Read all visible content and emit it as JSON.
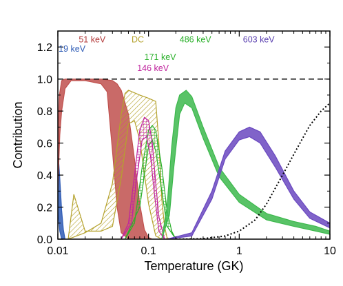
{
  "chart_data": {
    "type": "area",
    "title": "",
    "xlabel": "Temperature (GK)",
    "ylabel": "Contribution",
    "xscale": "log",
    "xlim": [
      0.01,
      10
    ],
    "ylim": [
      0,
      1.3
    ],
    "x_ticks": [
      0.01,
      0.1,
      1,
      10
    ],
    "x_tick_labels": [
      "0.01",
      "0.1",
      "1",
      "10"
    ],
    "y_ticks": [
      0,
      0.2,
      0.4,
      0.6,
      0.8,
      1.0,
      1.2
    ],
    "y_tick_labels": [
      "0.0",
      "0.2",
      "0.4",
      "0.6",
      "0.8",
      "1.0",
      "1.2"
    ],
    "grid": false,
    "reference_line": {
      "y": 1.0,
      "style": "dashed"
    },
    "series": [
      {
        "name": "19 keV",
        "color": "#2e5bb5",
        "fill": "solid",
        "upper": [
          [
            0.01,
            0.57
          ],
          [
            0.0105,
            0.38
          ],
          [
            0.011,
            0.18
          ],
          [
            0.0115,
            0.06
          ],
          [
            0.012,
            0.0
          ]
        ],
        "lower": [
          [
            0.01,
            0.18
          ],
          [
            0.0105,
            0.05
          ],
          [
            0.011,
            0.0
          ],
          [
            0.012,
            0.0
          ]
        ]
      },
      {
        "name": "51 keV",
        "color": "#c0504d",
        "fill": "solid",
        "upper": [
          [
            0.01,
            0.62
          ],
          [
            0.0104,
            0.9
          ],
          [
            0.011,
            0.99
          ],
          [
            0.012,
            1.0
          ],
          [
            0.02,
            1.0
          ],
          [
            0.03,
            1.0
          ],
          [
            0.04,
            0.99
          ],
          [
            0.045,
            0.97
          ],
          [
            0.05,
            0.93
          ],
          [
            0.06,
            0.78
          ],
          [
            0.07,
            0.5
          ],
          [
            0.08,
            0.22
          ],
          [
            0.09,
            0.06
          ],
          [
            0.1,
            0.01
          ],
          [
            0.11,
            0.0
          ]
        ],
        "lower": [
          [
            0.01,
            0.3
          ],
          [
            0.0105,
            0.65
          ],
          [
            0.011,
            0.8
          ],
          [
            0.012,
            0.94
          ],
          [
            0.014,
            0.99
          ],
          [
            0.02,
            0.99
          ],
          [
            0.03,
            0.97
          ],
          [
            0.035,
            0.92
          ],
          [
            0.04,
            0.55
          ],
          [
            0.045,
            0.2
          ],
          [
            0.05,
            0.04
          ],
          [
            0.06,
            0.0
          ],
          [
            0.11,
            0.0
          ]
        ]
      },
      {
        "name": "DC",
        "color": "#b5a22d",
        "fill": "hatched",
        "upper": [
          [
            0.013,
            0.0
          ],
          [
            0.02,
            0.04
          ],
          [
            0.03,
            0.1
          ],
          [
            0.04,
            0.35
          ],
          [
            0.05,
            0.78
          ],
          [
            0.055,
            0.91
          ],
          [
            0.06,
            0.93
          ],
          [
            0.08,
            0.9
          ],
          [
            0.1,
            0.88
          ],
          [
            0.12,
            0.86
          ],
          [
            0.13,
            0.6
          ],
          [
            0.14,
            0.25
          ],
          [
            0.15,
            0.08
          ],
          [
            0.16,
            0.01
          ],
          [
            0.17,
            0.0
          ]
        ],
        "lower": [
          [
            0.013,
            0.0
          ],
          [
            0.015,
            0.28
          ],
          [
            0.02,
            0.05
          ],
          [
            0.03,
            0.05
          ],
          [
            0.04,
            0.08
          ],
          [
            0.05,
            0.38
          ],
          [
            0.06,
            0.72
          ],
          [
            0.07,
            0.74
          ],
          [
            0.08,
            0.62
          ],
          [
            0.1,
            0.22
          ],
          [
            0.12,
            0.02
          ],
          [
            0.14,
            0.0
          ],
          [
            0.17,
            0.0
          ]
        ]
      },
      {
        "name": "171 keV",
        "color": "#2ab02a",
        "fill": "hatched",
        "upper": [
          [
            0.055,
            0.0
          ],
          [
            0.07,
            0.1
          ],
          [
            0.085,
            0.45
          ],
          [
            0.1,
            0.68
          ],
          [
            0.11,
            0.71
          ],
          [
            0.12,
            0.68
          ],
          [
            0.14,
            0.45
          ],
          [
            0.16,
            0.18
          ],
          [
            0.18,
            0.05
          ],
          [
            0.2,
            0.0
          ]
        ],
        "lower": [
          [
            0.055,
            0.0
          ],
          [
            0.08,
            0.2
          ],
          [
            0.1,
            0.58
          ],
          [
            0.11,
            0.62
          ],
          [
            0.12,
            0.55
          ],
          [
            0.14,
            0.3
          ],
          [
            0.16,
            0.08
          ],
          [
            0.2,
            0.0
          ]
        ]
      },
      {
        "name": "146 keV",
        "color": "#c0249e",
        "fill": "hatched",
        "upper": [
          [
            0.05,
            0.0
          ],
          [
            0.06,
            0.1
          ],
          [
            0.07,
            0.4
          ],
          [
            0.08,
            0.68
          ],
          [
            0.09,
            0.76
          ],
          [
            0.1,
            0.74
          ],
          [
            0.11,
            0.6
          ],
          [
            0.12,
            0.35
          ],
          [
            0.13,
            0.14
          ],
          [
            0.15,
            0.0
          ]
        ],
        "lower": [
          [
            0.05,
            0.0
          ],
          [
            0.065,
            0.1
          ],
          [
            0.075,
            0.4
          ],
          [
            0.085,
            0.62
          ],
          [
            0.095,
            0.64
          ],
          [
            0.105,
            0.52
          ],
          [
            0.115,
            0.3
          ],
          [
            0.13,
            0.05
          ],
          [
            0.15,
            0.0
          ]
        ]
      },
      {
        "name": "486 keV",
        "color": "#3cb84c",
        "fill": "solid",
        "upper": [
          [
            0.14,
            0.0
          ],
          [
            0.16,
            0.2
          ],
          [
            0.18,
            0.58
          ],
          [
            0.2,
            0.82
          ],
          [
            0.22,
            0.9
          ],
          [
            0.26,
            0.93
          ],
          [
            0.3,
            0.89
          ],
          [
            0.4,
            0.7
          ],
          [
            0.6,
            0.45
          ],
          [
            1.0,
            0.28
          ],
          [
            2.0,
            0.16
          ],
          [
            4.0,
            0.11
          ],
          [
            7.0,
            0.08
          ],
          [
            10.0,
            0.05
          ]
        ],
        "lower": [
          [
            0.14,
            0.0
          ],
          [
            0.17,
            0.15
          ],
          [
            0.19,
            0.45
          ],
          [
            0.22,
            0.78
          ],
          [
            0.25,
            0.85
          ],
          [
            0.3,
            0.82
          ],
          [
            0.4,
            0.63
          ],
          [
            0.6,
            0.39
          ],
          [
            1.0,
            0.23
          ],
          [
            2.0,
            0.12
          ],
          [
            4.0,
            0.08
          ],
          [
            7.0,
            0.05
          ],
          [
            10.0,
            0.03
          ]
        ]
      },
      {
        "name": "603 keV",
        "color": "#6a48c0",
        "fill": "solid",
        "upper": [
          [
            0.16,
            0.0
          ],
          [
            0.3,
            0.04
          ],
          [
            0.5,
            0.3
          ],
          [
            0.7,
            0.55
          ],
          [
            1.0,
            0.67
          ],
          [
            1.3,
            0.7
          ],
          [
            1.7,
            0.67
          ],
          [
            2.5,
            0.52
          ],
          [
            4.0,
            0.3
          ],
          [
            6.0,
            0.17
          ],
          [
            10.0,
            0.1
          ]
        ],
        "lower": [
          [
            0.16,
            0.0
          ],
          [
            0.3,
            0.02
          ],
          [
            0.5,
            0.25
          ],
          [
            0.7,
            0.5
          ],
          [
            1.0,
            0.62
          ],
          [
            1.3,
            0.64
          ],
          [
            1.7,
            0.6
          ],
          [
            2.5,
            0.45
          ],
          [
            4.0,
            0.25
          ],
          [
            6.0,
            0.13
          ],
          [
            10.0,
            0.07
          ]
        ]
      },
      {
        "name": "",
        "color": "#000000",
        "fill": "none",
        "style": "dotted",
        "line": [
          [
            0.2,
            0.0
          ],
          [
            0.4,
            0.003
          ],
          [
            0.7,
            0.02
          ],
          [
            1.0,
            0.05
          ],
          [
            1.5,
            0.12
          ],
          [
            2.0,
            0.22
          ],
          [
            3.0,
            0.4
          ],
          [
            4.0,
            0.53
          ],
          [
            5.0,
            0.63
          ],
          [
            6.0,
            0.71
          ],
          [
            8.0,
            0.8
          ],
          [
            10.0,
            0.85
          ]
        ]
      }
    ],
    "annotations": [
      {
        "text": "51 keV",
        "color": "#b33a3a",
        "x": 0.017,
        "y": 1.23
      },
      {
        "text": "19 keV",
        "color": "#2e5bb5",
        "x": 0.0102,
        "y": 1.17
      },
      {
        "text": "DC",
        "color": "#b5a22d",
        "x": 0.065,
        "y": 1.23
      },
      {
        "text": "486 keV",
        "color": "#2ab02a",
        "x": 0.22,
        "y": 1.23
      },
      {
        "text": "603 keV",
        "color": "#5a40b0",
        "x": 1.1,
        "y": 1.23
      },
      {
        "text": "171 keV",
        "color": "#2ab02a",
        "x": 0.09,
        "y": 1.12
      },
      {
        "text": "146 keV",
        "color": "#c0249e",
        "x": 0.075,
        "y": 1.05
      }
    ]
  }
}
